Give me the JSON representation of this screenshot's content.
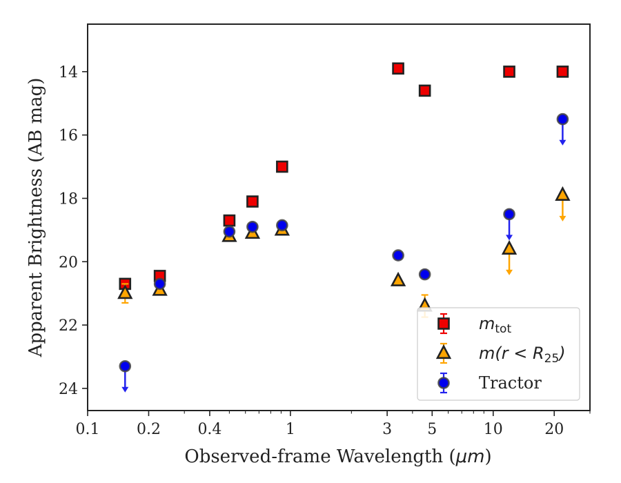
{
  "chart_data": {
    "type": "scatter",
    "xlabel_prefix": "Observed-frame Wavelength (",
    "xlabel_unit": "μm",
    "xlabel_suffix": ")",
    "ylabel": "Apparent Brightness (AB mag)",
    "xscale": "log",
    "xlim": [
      0.1,
      30
    ],
    "ylim": [
      24.7,
      12.5
    ],
    "y_inverted": true,
    "x_ticks": [
      {
        "value": 0.1,
        "label": "0.1"
      },
      {
        "value": 0.2,
        "label": "0.2"
      },
      {
        "value": 0.4,
        "label": "0.4"
      },
      {
        "value": 1,
        "label": "1"
      },
      {
        "value": 3,
        "label": "3"
      },
      {
        "value": 5,
        "label": "5"
      },
      {
        "value": 10,
        "label": "10"
      },
      {
        "value": 20,
        "label": "20"
      }
    ],
    "y_ticks": [
      {
        "value": 14,
        "label": "14"
      },
      {
        "value": 16,
        "label": "16"
      },
      {
        "value": 18,
        "label": "18"
      },
      {
        "value": 20,
        "label": "20"
      },
      {
        "value": 22,
        "label": "22"
      },
      {
        "value": 24,
        "label": "24"
      }
    ],
    "legend_position": "lower right",
    "series": [
      {
        "name": "m_tot",
        "marker": "square",
        "face_color": "#ee0000",
        "edge_color": "#222222",
        "error_color": "#ee0000",
        "points": [
          {
            "x": 0.153,
            "y": 20.7
          },
          {
            "x": 0.227,
            "y": 20.45
          },
          {
            "x": 0.5,
            "y": 18.7
          },
          {
            "x": 0.65,
            "y": 18.1
          },
          {
            "x": 0.91,
            "y": 17.0
          },
          {
            "x": 3.4,
            "y": 13.9
          },
          {
            "x": 4.6,
            "y": 14.6
          },
          {
            "x": 12.0,
            "y": 14.0
          },
          {
            "x": 22.0,
            "y": 14.0
          }
        ]
      },
      {
        "name": "m(r<R25)",
        "marker": "triangle",
        "face_color": "#ffa500",
        "edge_color": "#222222",
        "error_color": "#ffa500",
        "points": [
          {
            "x": 0.153,
            "y": 21.0,
            "err": 0.3
          },
          {
            "x": 0.227,
            "y": 20.9
          },
          {
            "x": 0.5,
            "y": 19.2
          },
          {
            "x": 0.65,
            "y": 19.1
          },
          {
            "x": 0.91,
            "y": 19.0
          },
          {
            "x": 3.4,
            "y": 20.6
          },
          {
            "x": 4.6,
            "y": 21.4,
            "err": 0.35
          },
          {
            "x": 12.0,
            "y": 19.6,
            "upper_limit": true
          },
          {
            "x": 22.0,
            "y": 17.9,
            "upper_limit": true
          }
        ]
      },
      {
        "name": "Tractor",
        "marker": "circle",
        "face_color": "#0000ee",
        "edge_color": "#444444",
        "error_color": "#2222ee",
        "points": [
          {
            "x": 0.153,
            "y": 23.3,
            "upper_limit": true
          },
          {
            "x": 0.227,
            "y": 20.7
          },
          {
            "x": 0.5,
            "y": 19.05
          },
          {
            "x": 0.65,
            "y": 18.9
          },
          {
            "x": 0.91,
            "y": 18.85
          },
          {
            "x": 3.4,
            "y": 19.8
          },
          {
            "x": 4.6,
            "y": 20.4
          },
          {
            "x": 12.0,
            "y": 18.5,
            "upper_limit": true
          },
          {
            "x": 22.0,
            "y": 15.5,
            "upper_limit": true
          }
        ]
      }
    ],
    "legend": [
      {
        "series": "m_tot",
        "label_main": "m",
        "label_sub": "tot",
        "label_suffix": ""
      },
      {
        "series": "m(r<R25)",
        "label_main": "m(r < R",
        "label_sub": "25",
        "label_suffix": ")"
      },
      {
        "series": "Tractor",
        "label_main": "Tractor",
        "label_sub": "",
        "label_suffix": ""
      }
    ]
  }
}
